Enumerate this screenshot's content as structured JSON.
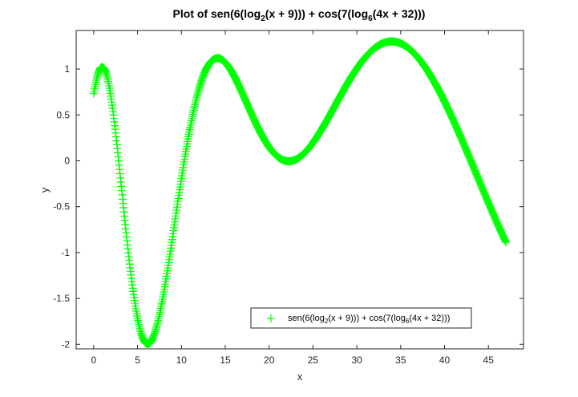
{
  "chart_data": {
    "type": "scatter",
    "title": {
      "prefix": "Plot of sen(6(log",
      "sub1": "2",
      "mid": "(x + 9))) + cos(7(log",
      "sub2": "6",
      "suffix": "(4x + 32)))"
    },
    "xlabel": "x",
    "ylabel": "y",
    "xlim": [
      -2,
      49
    ],
    "ylim": [
      -2.05,
      1.42
    ],
    "xticks": [
      0,
      5,
      10,
      15,
      20,
      25,
      30,
      35,
      40,
      45
    ],
    "yticks": [
      -2,
      -1.5,
      -1,
      -0.5,
      0,
      0.5,
      1
    ],
    "ytick_labels": [
      "-2",
      "-1.5",
      "-1",
      "-0.5",
      "0",
      "0.5",
      "1"
    ],
    "xtick_labels": [
      "0",
      "5",
      "10",
      "15",
      "20",
      "25",
      "30",
      "35",
      "40",
      "45"
    ],
    "grid": false,
    "legend_position": "bottom-right",
    "series": [
      {
        "name": {
          "prefix": "sen(6(log",
          "sub1": "2",
          "mid": "(x + 9))) + cos(7(log",
          "sub2": "6",
          "suffix": "(4x + 32)))"
        },
        "marker": "+",
        "color": "#00ff00",
        "x_range": [
          0,
          47
        ],
        "sample_step": 0.05
      }
    ]
  }
}
